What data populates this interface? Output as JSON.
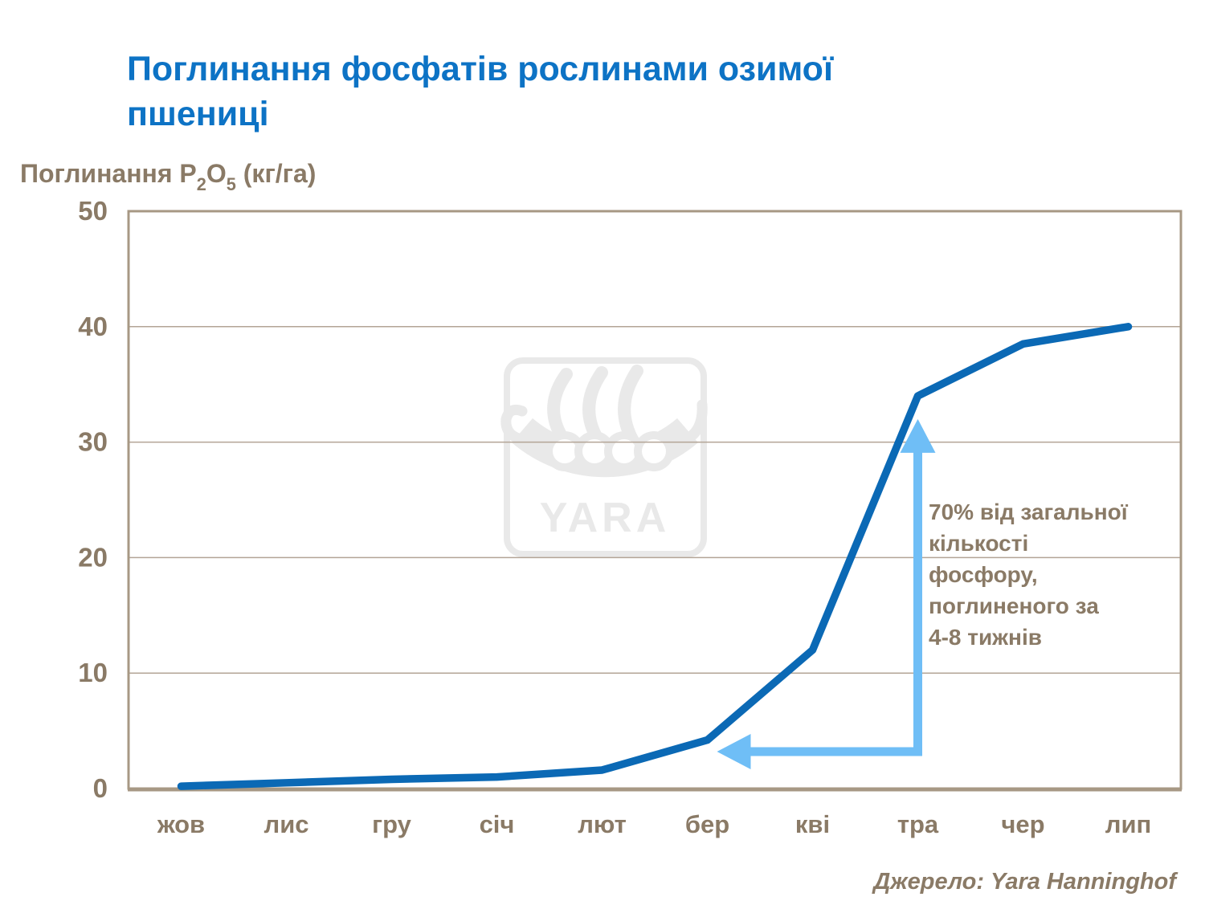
{
  "header": {
    "title_lines": [
      "Поглинання фосфатів рослинами озимої",
      "пшениці"
    ]
  },
  "y_axis_title": {
    "plain": "Поглинання P2O5 (кг/га)",
    "parts": [
      {
        "t": "Поглинання P"
      },
      {
        "t": "2",
        "sub": true
      },
      {
        "t": "O"
      },
      {
        "t": "5",
        "sub": true
      },
      {
        "t": " (кг/га)"
      }
    ]
  },
  "chart_data": {
    "type": "line",
    "categories": [
      "жов",
      "лис",
      "гру",
      "січ",
      "лют",
      "бер",
      "кві",
      "тра",
      "чер",
      "лип"
    ],
    "values": [
      0.2,
      0.5,
      0.8,
      1.0,
      1.6,
      4.2,
      12,
      34,
      38.5,
      40
    ],
    "title": "Поглинання фосфатів рослинами озимої пшениці",
    "ylabel": "Поглинання P2O5 (кг/га)",
    "ylim": [
      0,
      50
    ],
    "yticks": [
      0,
      10,
      20,
      30,
      40,
      50
    ],
    "grid": "horizontal",
    "legend": "none",
    "annotation": {
      "text_lines": [
        "70% від загальної",
        "кількості",
        "фосфору,",
        "поглиненого за",
        "4-8 тижнів"
      ],
      "arrow_from_category_index": 5,
      "arrow_to_category_index": 7,
      "arrow_horizontal_value": 3.2,
      "arrow_tip_value": 32
    },
    "watermark": "YARA",
    "source": "Джерело: Yara Hanninghof"
  },
  "colors": {
    "title_blue": "#0d73c5",
    "line_blue": "#0b69b5",
    "arrow_light_blue": "#6fbef6",
    "text_brown": "#8a7a66",
    "gridline": "#b3a496",
    "plot_border": "#a79884",
    "watermark_gray": "#e9e9e9"
  }
}
